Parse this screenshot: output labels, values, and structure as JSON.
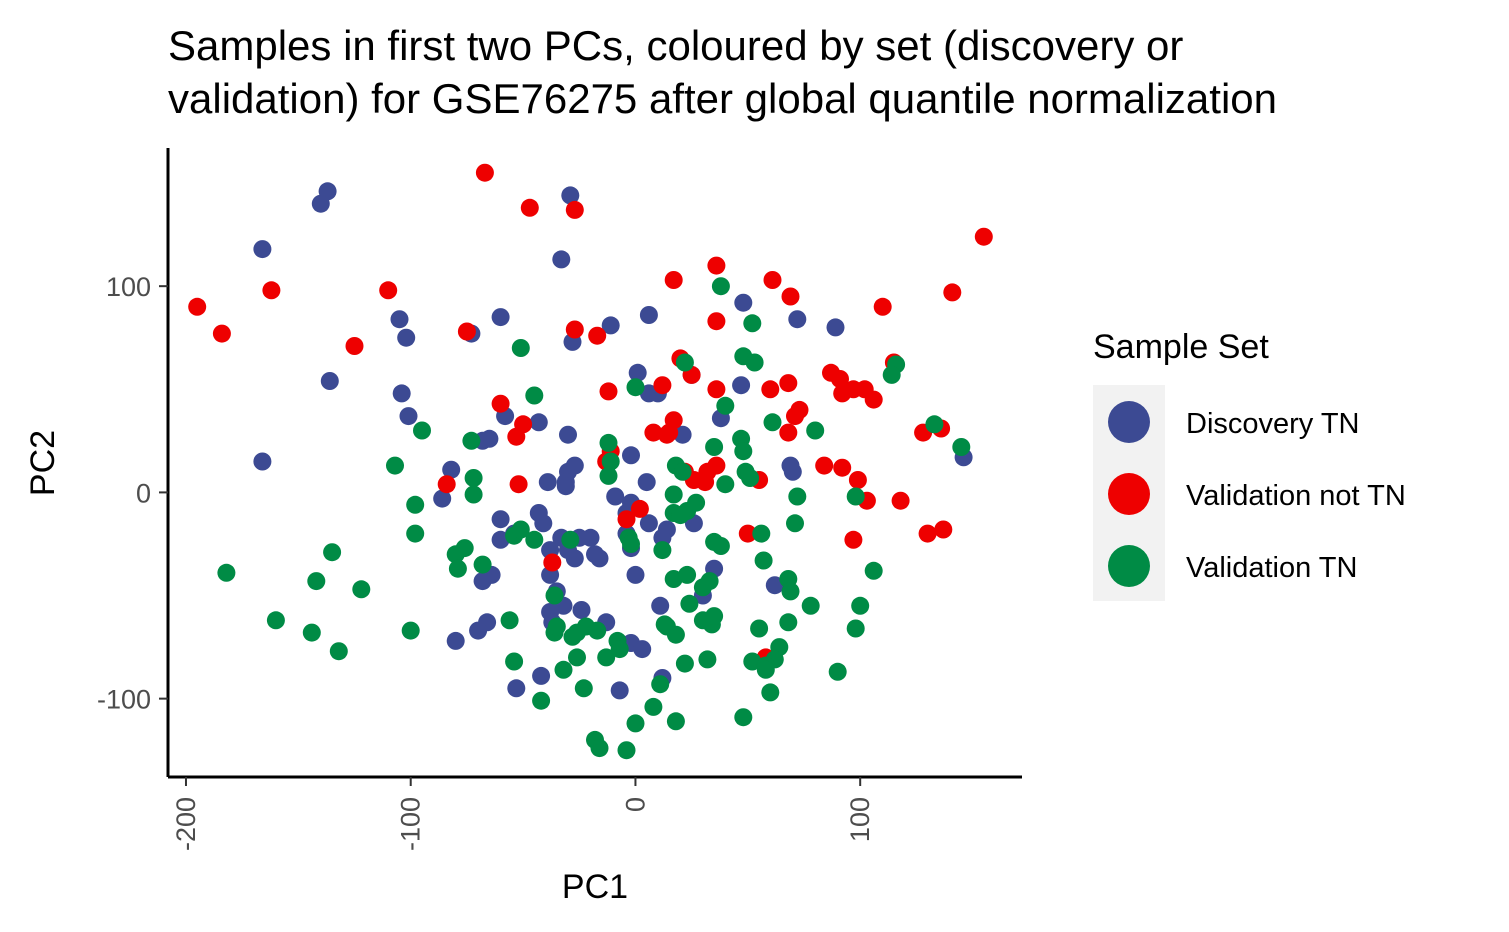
{
  "chart_data": {
    "type": "scatter",
    "title_lines": [
      "Samples in first two PCs, coloured by set (discovery or",
      "validation) for GSE76275 after global quantile normalization"
    ],
    "xlabel": "PC1",
    "ylabel": "PC2",
    "xlim": [
      -208,
      172
    ],
    "ylim": [
      -138,
      167
    ],
    "x_ticks": [
      {
        "value": -200,
        "label": "-200"
      },
      {
        "value": -100,
        "label": "-100"
      },
      {
        "value": 0,
        "label": "0"
      },
      {
        "value": 100,
        "label": "100"
      }
    ],
    "y_ticks": [
      {
        "value": 100,
        "label": "100"
      },
      {
        "value": 0,
        "label": "0"
      },
      {
        "value": -100,
        "label": "-100"
      }
    ],
    "grid": false,
    "legend": {
      "title": "Sample Set",
      "placement": "right"
    },
    "series": [
      {
        "name": "Discovery TN",
        "color": "#3C4A93",
        "points": [
          [
            -137,
            146
          ],
          [
            -140,
            140
          ],
          [
            -29,
            144
          ],
          [
            -166,
            118
          ],
          [
            -33,
            113
          ],
          [
            -105,
            84
          ],
          [
            -102,
            75
          ],
          [
            -60,
            85
          ],
          [
            -73,
            77
          ],
          [
            -11,
            81
          ],
          [
            6,
            86
          ],
          [
            -28,
            73
          ],
          [
            -136,
            54
          ],
          [
            -104,
            48
          ],
          [
            -101,
            37
          ],
          [
            -58,
            37
          ],
          [
            -43,
            34
          ],
          [
            -30,
            28
          ],
          [
            -65,
            26
          ],
          [
            -68,
            25
          ],
          [
            21,
            28
          ],
          [
            1,
            58
          ],
          [
            10,
            48
          ],
          [
            6,
            48
          ],
          [
            25,
            57
          ],
          [
            48,
            92
          ],
          [
            72,
            84
          ],
          [
            89,
            80
          ],
          [
            47,
            52
          ],
          [
            38,
            36
          ],
          [
            69,
            13
          ],
          [
            70,
            10
          ],
          [
            146,
            17
          ],
          [
            -166,
            15
          ],
          [
            -82,
            11
          ],
          [
            -86,
            -3
          ],
          [
            -60,
            -13
          ],
          [
            -54,
            -20
          ],
          [
            -60,
            -23
          ],
          [
            -43,
            -10
          ],
          [
            -41,
            -15
          ],
          [
            -33,
            -22
          ],
          [
            -25,
            -22
          ],
          [
            -20,
            -22
          ],
          [
            -18,
            -30
          ],
          [
            -16,
            -32
          ],
          [
            -27,
            -32
          ],
          [
            -38,
            -28
          ],
          [
            -30,
            -28
          ],
          [
            -30,
            10
          ],
          [
            -27,
            13
          ],
          [
            -31,
            5
          ],
          [
            -39,
            5
          ],
          [
            -31,
            3
          ],
          [
            -2,
            18
          ],
          [
            -9,
            -2
          ],
          [
            -2,
            -5
          ],
          [
            -4,
            -10
          ],
          [
            5,
            5
          ],
          [
            14,
            -18
          ],
          [
            6,
            -15
          ],
          [
            12,
            -22
          ],
          [
            26,
            -15
          ],
          [
            -4,
            -20
          ],
          [
            -2,
            -27
          ],
          [
            0,
            -40
          ],
          [
            -64,
            -40
          ],
          [
            -68,
            -43
          ],
          [
            -38,
            -40
          ],
          [
            -35,
            -48
          ],
          [
            -32,
            -55
          ],
          [
            -24,
            -57
          ],
          [
            -38,
            -58
          ],
          [
            -37,
            -63
          ],
          [
            -66,
            -63
          ],
          [
            -70,
            -67
          ],
          [
            -80,
            -72
          ],
          [
            -7,
            -73
          ],
          [
            -2,
            -73
          ],
          [
            3,
            -76
          ],
          [
            11,
            -55
          ],
          [
            30,
            -50
          ],
          [
            35,
            -37
          ],
          [
            62,
            -45
          ],
          [
            -13,
            -63
          ],
          [
            -7,
            -96
          ],
          [
            -42,
            -89
          ],
          [
            -53,
            -95
          ],
          [
            12,
            -90
          ]
        ]
      },
      {
        "name": "Validation not TN",
        "color": "#EE0000",
        "points": [
          [
            -67,
            155
          ],
          [
            -47,
            138
          ],
          [
            -27,
            137
          ],
          [
            155,
            124
          ],
          [
            -195,
            90
          ],
          [
            -184,
            77
          ],
          [
            -162,
            98
          ],
          [
            -110,
            98
          ],
          [
            -125,
            71
          ],
          [
            -75,
            78
          ],
          [
            -27,
            79
          ],
          [
            -17,
            76
          ],
          [
            36,
            110
          ],
          [
            17,
            103
          ],
          [
            61,
            103
          ],
          [
            69,
            95
          ],
          [
            110,
            90
          ],
          [
            36,
            83
          ],
          [
            141,
            97
          ],
          [
            20,
            65
          ],
          [
            25,
            57
          ],
          [
            12,
            52
          ],
          [
            115,
            63
          ],
          [
            60,
            50
          ],
          [
            68,
            53
          ],
          [
            87,
            58
          ],
          [
            91,
            55
          ],
          [
            102,
            50
          ],
          [
            92,
            48
          ],
          [
            97,
            50
          ],
          [
            106,
            45
          ],
          [
            -60,
            43
          ],
          [
            36,
            50
          ],
          [
            -12,
            49
          ],
          [
            -50,
            33
          ],
          [
            -53,
            27
          ],
          [
            17,
            35
          ],
          [
            8,
            29
          ],
          [
            14,
            28
          ],
          [
            15,
            29
          ],
          [
            71,
            37
          ],
          [
            73,
            40
          ],
          [
            68,
            29
          ],
          [
            84,
            13
          ],
          [
            92,
            12
          ],
          [
            99,
            6
          ],
          [
            22,
            10
          ],
          [
            32,
            10
          ],
          [
            26,
            6
          ],
          [
            31,
            5
          ],
          [
            36,
            13
          ],
          [
            2,
            -8
          ],
          [
            -52,
            4
          ],
          [
            -84,
            4
          ],
          [
            -13,
            15
          ],
          [
            -11,
            20
          ],
          [
            -4,
            -13
          ],
          [
            -37,
            -34
          ],
          [
            50,
            -20
          ],
          [
            55,
            6
          ],
          [
            97,
            -23
          ],
          [
            103,
            -4
          ],
          [
            118,
            -4
          ],
          [
            128,
            29
          ],
          [
            136,
            31
          ],
          [
            130,
            -20
          ],
          [
            137,
            -18
          ],
          [
            58,
            -80
          ]
        ]
      },
      {
        "name": "Validation TN",
        "color": "#008B45",
        "points": [
          [
            38,
            100
          ],
          [
            52,
            82
          ],
          [
            -51,
            70
          ],
          [
            22,
            63
          ],
          [
            48,
            66
          ],
          [
            53,
            63
          ],
          [
            116,
            62
          ],
          [
            114,
            57
          ],
          [
            -45,
            47
          ],
          [
            0,
            51
          ],
          [
            40,
            42
          ],
          [
            61,
            34
          ],
          [
            80,
            30
          ],
          [
            -95,
            30
          ],
          [
            -73,
            25
          ],
          [
            -12,
            24
          ],
          [
            35,
            22
          ],
          [
            47,
            26
          ],
          [
            48,
            20
          ],
          [
            -107,
            13
          ],
          [
            -72,
            7
          ],
          [
            -72,
            -1
          ],
          [
            -11,
            15
          ],
          [
            -12,
            8
          ],
          [
            18,
            13
          ],
          [
            21,
            10
          ],
          [
            40,
            4
          ],
          [
            49,
            10
          ],
          [
            51,
            7
          ],
          [
            72,
            -2
          ],
          [
            98,
            -2
          ],
          [
            133,
            33
          ],
          [
            145,
            22
          ],
          [
            -98,
            -6
          ],
          [
            17,
            -1
          ],
          [
            23,
            -9
          ],
          [
            27,
            -5
          ],
          [
            17,
            -10
          ],
          [
            20,
            -11
          ],
          [
            -54,
            -21
          ],
          [
            -51,
            -18
          ],
          [
            -45,
            -23
          ],
          [
            -29,
            -23
          ],
          [
            -98,
            -20
          ],
          [
            -80,
            -30
          ],
          [
            -76,
            -27
          ],
          [
            -79,
            -37
          ],
          [
            -68,
            -35
          ],
          [
            -135,
            -29
          ],
          [
            -142,
            -43
          ],
          [
            -122,
            -47
          ],
          [
            -182,
            -39
          ],
          [
            -160,
            -62
          ],
          [
            -144,
            -68
          ],
          [
            -132,
            -77
          ],
          [
            -100,
            -67
          ],
          [
            -56,
            -62
          ],
          [
            -54,
            -82
          ],
          [
            -36,
            -50
          ],
          [
            -36,
            -68
          ],
          [
            -32,
            -86
          ],
          [
            -26,
            -80
          ],
          [
            -28,
            -70
          ],
          [
            -22,
            -65
          ],
          [
            -17,
            -67
          ],
          [
            -26,
            -68
          ],
          [
            -8,
            -72
          ],
          [
            -7,
            -76
          ],
          [
            -3,
            -22
          ],
          [
            -2,
            -25
          ],
          [
            12,
            -28
          ],
          [
            17,
            -42
          ],
          [
            23,
            -40
          ],
          [
            24,
            -54
          ],
          [
            14,
            -65
          ],
          [
            18,
            -69
          ],
          [
            22,
            -83
          ],
          [
            30,
            -62
          ],
          [
            34,
            -64
          ],
          [
            35,
            -60
          ],
          [
            30,
            -46
          ],
          [
            33,
            -43
          ],
          [
            35,
            -24
          ],
          [
            38,
            -26
          ],
          [
            56,
            -20
          ],
          [
            57,
            -33
          ],
          [
            71,
            -15
          ],
          [
            68,
            -42
          ],
          [
            69,
            -48
          ],
          [
            78,
            -55
          ],
          [
            100,
            -55
          ],
          [
            98,
            -66
          ],
          [
            106,
            -38
          ],
          [
            55,
            -66
          ],
          [
            64,
            -75
          ],
          [
            68,
            -63
          ],
          [
            62,
            -81
          ],
          [
            52,
            -82
          ],
          [
            58,
            -84
          ],
          [
            32,
            -81
          ],
          [
            48,
            -109
          ],
          [
            60,
            -97
          ],
          [
            90,
            -87
          ],
          [
            0,
            -112
          ],
          [
            -42,
            -101
          ],
          [
            -35,
            -65
          ],
          [
            -13,
            -80
          ],
          [
            -18,
            -120
          ],
          [
            -16,
            -124
          ],
          [
            -4,
            -125
          ],
          [
            8,
            -104
          ],
          [
            11,
            -93
          ],
          [
            13,
            -64
          ],
          [
            -23,
            -95
          ],
          [
            18,
            -111
          ],
          [
            58,
            -86
          ]
        ]
      }
    ]
  }
}
